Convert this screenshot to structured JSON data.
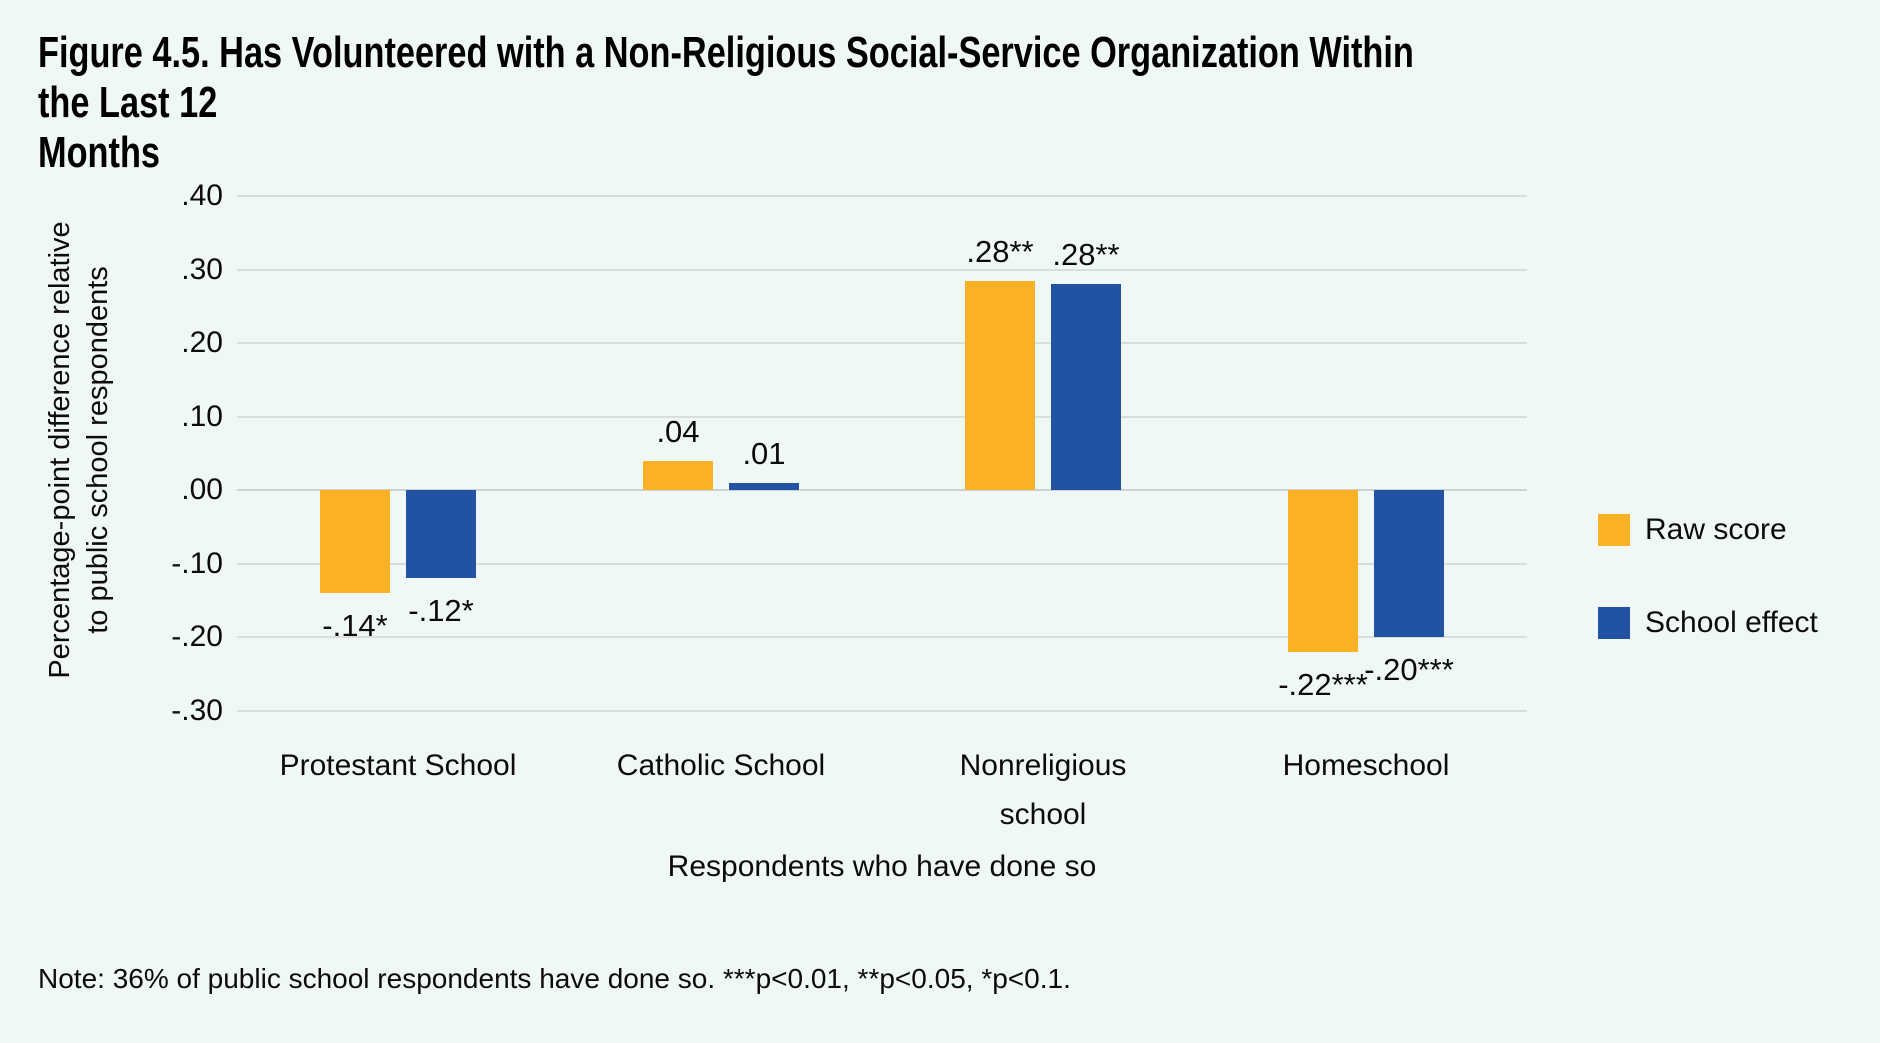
{
  "figure": {
    "title": "Figure 4.5. Has Volunteered with a Non-Religious Social-Service Organization Within the Last 12\nMonths",
    "note": "Note: 36% of public school respondents have done so. ***p<0.01, **p<0.05, *p<0.1."
  },
  "colors": {
    "background": "#EFF8F6",
    "raw_score": "#FBB125",
    "school_effect": "#2253A3",
    "gridline": "#D9DEDC",
    "text": "#0b0b0b"
  },
  "chart_data": {
    "type": "bar",
    "title": "Figure 4.5. Has Volunteered with a Non-Religious Social-Service Organization Within the Last 12 Months",
    "xlabel": "Respondents who have done so",
    "ylabel": "Percentage-point difference relative\nto public school respondents",
    "categories": [
      "Protestant School",
      "Catholic School",
      "Nonreligious\nschool",
      "Homeschool"
    ],
    "series": [
      {
        "name": "Raw score",
        "color": "#FBB125",
        "values": [
          -0.14,
          0.04,
          0.285,
          -0.22
        ],
        "labels": [
          "-.14*",
          ".04",
          ".28**",
          "-.22***"
        ]
      },
      {
        "name": "School effect",
        "color": "#2253A3",
        "values": [
          -0.12,
          0.01,
          0.28,
          -0.2
        ],
        "labels": [
          "-.12*",
          ".01",
          ".28**",
          "-.20***"
        ]
      }
    ],
    "yticks": [
      {
        "label": ".40",
        "value": 0.4
      },
      {
        "label": ".30",
        "value": 0.3
      },
      {
        "label": ".20",
        "value": 0.2
      },
      {
        "label": ".10",
        "value": 0.1
      },
      {
        "label": ".00",
        "value": 0.0
      },
      {
        "label": "-.10",
        "value": -0.1
      },
      {
        "label": "-.20",
        "value": -0.2
      },
      {
        "label": "-.30",
        "value": -0.3
      }
    ],
    "ylim": [
      -0.3,
      0.4
    ],
    "grid": true,
    "legend_position": "right",
    "baseline_note": "36% of public school respondents have done so",
    "significance_key": "***p<0.01, **p<0.05, *p<0.1"
  }
}
